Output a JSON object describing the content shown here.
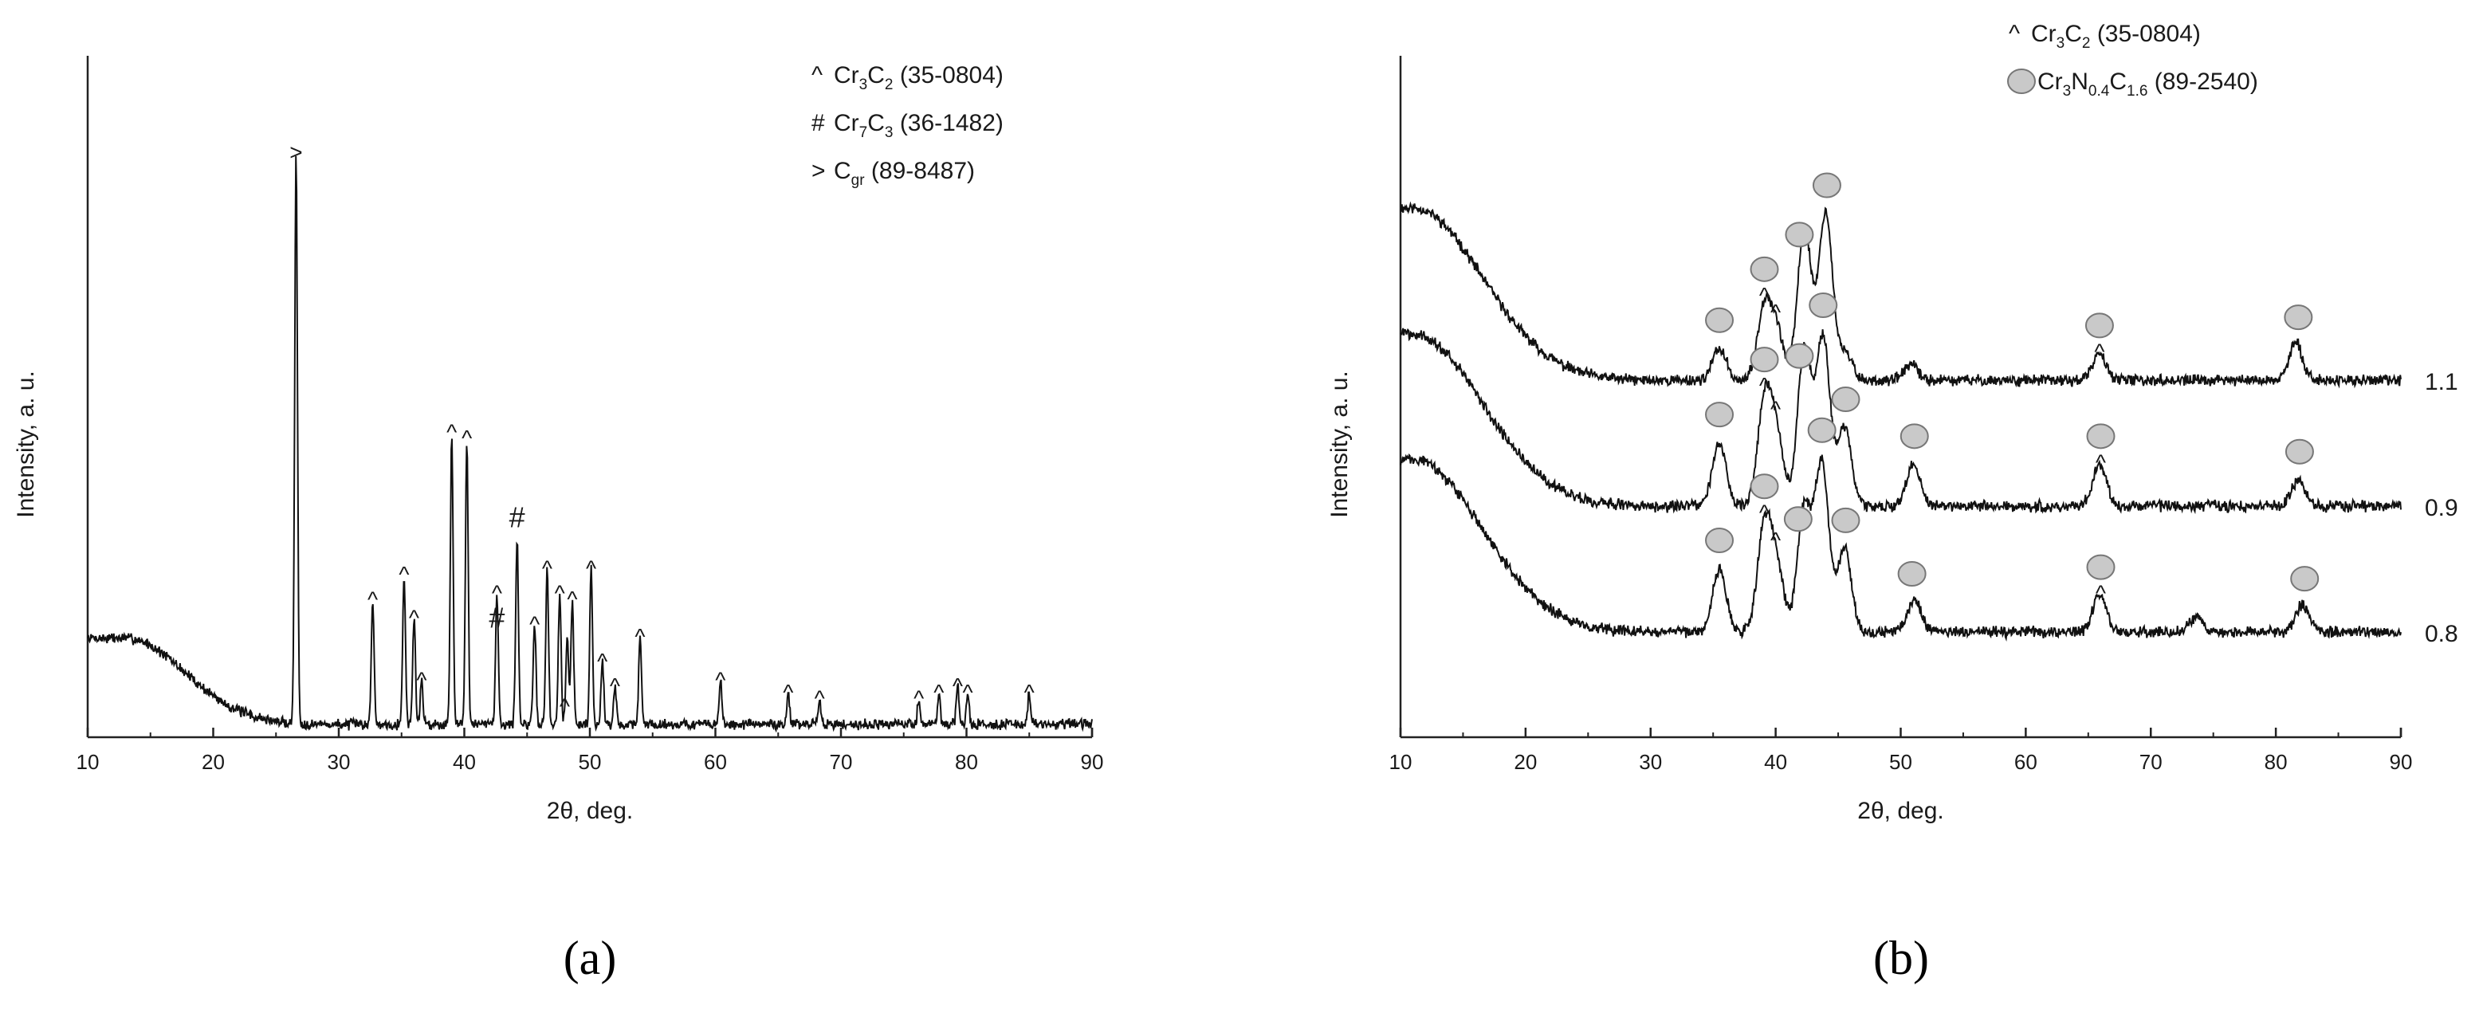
{
  "panels": [
    {
      "panel_label": "(a)",
      "legend": [
        {
          "marker": "^",
          "parts": [
            [
              "Cr",
              ""
            ],
            [
              "3",
              "sub"
            ],
            [
              "C",
              ""
            ],
            [
              "2",
              "sub"
            ],
            [
              " (35-0804)",
              ""
            ]
          ]
        },
        {
          "marker": "#",
          "parts": [
            [
              "Cr",
              ""
            ],
            [
              "7",
              "sub"
            ],
            [
              "C",
              ""
            ],
            [
              "3",
              "sub"
            ],
            [
              " (36-1482)",
              ""
            ]
          ]
        },
        {
          "marker": ">",
          "parts": [
            [
              "C",
              ""
            ],
            [
              "gr",
              "sub"
            ],
            [
              " (89-8487)",
              ""
            ]
          ]
        }
      ],
      "chart_data": {
        "type": "line",
        "xlabel": "2θ, deg.",
        "ylabel": "Intensity, a. u.",
        "xlim": [
          10,
          90
        ],
        "ylim": [
          0,
          110
        ],
        "x_ticks": [
          "10",
          "20",
          "30",
          "40",
          "50",
          "60",
          "70",
          "80",
          "90"
        ],
        "grid": false,
        "background": {
          "start": 14,
          "plateau_x": 13,
          "decay_end": 28,
          "decay_width": 5,
          "tail_slope": 0.015
        },
        "peaks": [
          {
            "x": 26.6,
            "height": 92
          },
          {
            "x": 32.7,
            "height": 20
          },
          {
            "x": 35.2,
            "height": 24
          },
          {
            "x": 36.0,
            "height": 17
          },
          {
            "x": 36.6,
            "height": 7
          },
          {
            "x": 39.0,
            "height": 47
          },
          {
            "x": 40.2,
            "height": 46
          },
          {
            "x": 42.6,
            "height": 21
          },
          {
            "x": 44.2,
            "height": 30
          },
          {
            "x": 45.6,
            "height": 16
          },
          {
            "x": 46.6,
            "height": 25
          },
          {
            "x": 47.6,
            "height": 21
          },
          {
            "x": 48.2,
            "height": 14
          },
          {
            "x": 48.6,
            "height": 20
          },
          {
            "x": 50.1,
            "height": 25
          },
          {
            "x": 51.0,
            "height": 10
          },
          {
            "x": 52.0,
            "height": 6
          },
          {
            "x": 54.0,
            "height": 14
          },
          {
            "x": 60.4,
            "height": 7
          },
          {
            "x": 65.8,
            "height": 5
          },
          {
            "x": 68.3,
            "height": 4
          },
          {
            "x": 76.2,
            "height": 4
          },
          {
            "x": 77.8,
            "height": 5
          },
          {
            "x": 79.3,
            "height": 6
          },
          {
            "x": 80.1,
            "height": 5
          },
          {
            "x": 85.0,
            "height": 5
          }
        ],
        "annotations": [
          {
            "text": ">",
            "x": 26.6
          },
          {
            "text": "^",
            "x": 32.7
          },
          {
            "text": "^",
            "x": 35.2
          },
          {
            "text": "^",
            "x": 36.0
          },
          {
            "text": "^",
            "x": 36.6
          },
          {
            "text": "^",
            "x": 39.0
          },
          {
            "text": "^",
            "x": 40.2
          },
          {
            "text": "^",
            "x": 42.6,
            "stack": "#"
          },
          {
            "text": "#",
            "x": 44.2
          },
          {
            "text": "^",
            "x": 45.6
          },
          {
            "text": "^",
            "x": 46.6
          },
          {
            "text": "^",
            "x": 47.6
          },
          {
            "text": "^",
            "x": 48.0
          },
          {
            "text": "^",
            "x": 48.6
          },
          {
            "text": "^",
            "x": 50.1
          },
          {
            "text": "^",
            "x": 51.0
          },
          {
            "text": "^",
            "x": 52.0
          },
          {
            "text": "^",
            "x": 54.0
          },
          {
            "text": "^",
            "x": 60.4
          },
          {
            "text": "^",
            "x": 65.8
          },
          {
            "text": "^",
            "x": 68.3
          },
          {
            "text": "^",
            "x": 76.2
          },
          {
            "text": "^",
            "x": 77.8
          },
          {
            "text": "^",
            "x": 79.3
          },
          {
            "text": "^",
            "x": 80.1
          },
          {
            "text": "^",
            "x": 85.0
          }
        ]
      }
    },
    {
      "panel_label": "(b)",
      "legend": [
        {
          "marker": "^",
          "parts": [
            [
              "Cr",
              ""
            ],
            [
              "3",
              "sub"
            ],
            [
              "C",
              ""
            ],
            [
              "2",
              "sub"
            ],
            [
              " (35-0804)",
              ""
            ]
          ]
        },
        {
          "marker": "circle",
          "parts": [
            [
              "Cr",
              ""
            ],
            [
              "3",
              "sub"
            ],
            [
              "N",
              ""
            ],
            [
              "0.4",
              "sub"
            ],
            [
              "C",
              ""
            ],
            [
              "1.6",
              "sub"
            ],
            [
              " (89-2540)",
              ""
            ]
          ]
        }
      ],
      "chart_data": {
        "type": "line",
        "xlabel": "2θ, deg.",
        "ylabel": "Intensity, a. u.",
        "xlim": [
          10,
          90
        ],
        "ylim": [
          0,
          130
        ],
        "x_ticks": [
          "10",
          "20",
          "30",
          "40",
          "50",
          "60",
          "70",
          "80",
          "90"
        ],
        "grid": false,
        "series": [
          {
            "name": "1.1",
            "baseline": 66,
            "background": {
              "start": 33,
              "plateau_x": 11,
              "decay_end": 30,
              "decay_width": 6,
              "tail_slope": 0.06
            },
            "peaks": [
              {
                "x": 35.5,
                "height": 6
              },
              {
                "x": 39.1,
                "height": 14
              },
              {
                "x": 40.1,
                "height": 9
              },
              {
                "x": 42.3,
                "height": 29
              },
              {
                "x": 44.0,
                "height": 32
              },
              {
                "x": 45.6,
                "height": 5
              },
              {
                "x": 50.8,
                "height": 3
              },
              {
                "x": 65.9,
                "height": 5
              },
              {
                "x": 81.6,
                "height": 7
              }
            ],
            "circles": [
              35.5,
              39.1,
              41.9,
              44.1,
              65.9,
              81.8
            ],
            "carets": [
              39.1,
              40.0,
              65.9
            ]
          },
          {
            "name": "0.9",
            "baseline": 42,
            "background": {
              "start": 33,
              "plateau_x": 11,
              "decay_end": 30,
              "decay_width": 6,
              "tail_slope": 0.06
            },
            "peaks": [
              {
                "x": 35.5,
                "height": 12
              },
              {
                "x": 39.1,
                "height": 20
              },
              {
                "x": 40.1,
                "height": 13
              },
              {
                "x": 42.3,
                "height": 30
              },
              {
                "x": 43.8,
                "height": 32
              },
              {
                "x": 45.5,
                "height": 15
              },
              {
                "x": 51.0,
                "height": 8
              },
              {
                "x": 65.9,
                "height": 8
              },
              {
                "x": 81.8,
                "height": 5
              }
            ],
            "circles": [
              35.5,
              39.1,
              41.9,
              43.8,
              45.6,
              51.1,
              66.0,
              81.9
            ],
            "carets": [
              39.1,
              40.0,
              66.0
            ]
          },
          {
            "name": "0.8",
            "baseline": 18,
            "background": {
              "start": 33,
              "plateau_x": 11,
              "decay_end": 30,
              "decay_width": 6,
              "tail_slope": 0.06
            },
            "peaks": [
              {
                "x": 35.5,
                "height": 12
              },
              {
                "x": 39.1,
                "height": 20
              },
              {
                "x": 40.1,
                "height": 12
              },
              {
                "x": 42.3,
                "height": 24
              },
              {
                "x": 43.7,
                "height": 32
              },
              {
                "x": 45.5,
                "height": 16
              },
              {
                "x": 51.1,
                "height": 6
              },
              {
                "x": 65.9,
                "height": 7
              },
              {
                "x": 73.7,
                "height": 3
              },
              {
                "x": 82.1,
                "height": 5
              }
            ],
            "circles": [
              35.5,
              39.1,
              41.8,
              43.7,
              45.6,
              50.9,
              66.0,
              82.3
            ],
            "carets": [
              39.1,
              40.0,
              66.0
            ]
          }
        ]
      }
    }
  ]
}
